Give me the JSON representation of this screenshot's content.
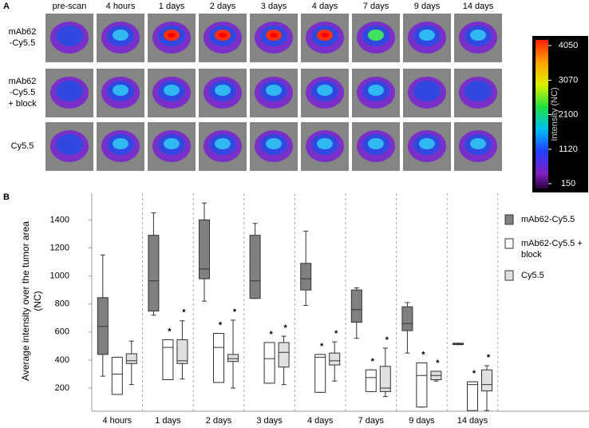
{
  "panel_a": {
    "label": "A",
    "columns": [
      "pre-scan",
      "4 hours",
      "1 days",
      "2 days",
      "3 days",
      "4 days",
      "7 days",
      "9 days",
      "14 days"
    ],
    "rows": [
      [
        "mAb62",
        "-Cy5.5"
      ],
      [
        "mAb62",
        "-Cy5.5",
        "+ block"
      ],
      [
        "Cy5.5"
      ]
    ],
    "colorbar": {
      "label": "Intensity (NC)",
      "lim": [
        150,
        4050
      ],
      "ticks": [
        4050,
        3070,
        2100,
        1120,
        150
      ]
    }
  },
  "chart_data": {
    "type": "box",
    "panel_label": "B",
    "y_label": "Average intensity over the tumor area (NC)",
    "categories": [
      "4 hours",
      "1 days",
      "2 days",
      "3 days",
      "4 days",
      "7 days",
      "9 days",
      "14 days"
    ],
    "ylim": [
      35,
      1590
    ],
    "yticks": [
      200,
      400,
      600,
      800,
      1000,
      1200,
      1400
    ],
    "series": [
      {
        "name": "mAb62-Cy5.5",
        "color": "#808080",
        "values": [
          [
            285,
            440,
            640,
            845,
            1150
          ],
          [
            720,
            750,
            965,
            1290,
            1450
          ],
          [
            820,
            980,
            1050,
            1400,
            1520
          ],
          [
            840,
            840,
            965,
            1290,
            1375
          ],
          [
            790,
            900,
            980,
            1090,
            1320
          ],
          [
            555,
            670,
            760,
            900,
            915
          ],
          [
            450,
            610,
            660,
            780,
            810
          ],
          [
            510,
            510,
            515,
            520,
            520
          ]
        ]
      },
      {
        "name": "mAb62-Cy5.5 + block",
        "color": "#ffffff",
        "values": [
          [
            155,
            155,
            300,
            420,
            420
          ],
          [
            260,
            260,
            490,
            545,
            545
          ],
          [
            240,
            240,
            490,
            590,
            590
          ],
          [
            235,
            235,
            410,
            525,
            525
          ],
          [
            170,
            170,
            420,
            440,
            440
          ],
          [
            175,
            175,
            275,
            330,
            330
          ],
          [
            65,
            65,
            290,
            380,
            380
          ],
          [
            40,
            40,
            225,
            245,
            245
          ]
        ],
        "annotations": [
          null,
          "*",
          "*",
          "*",
          "*",
          "*",
          "*",
          "*"
        ]
      },
      {
        "name": "Cy5.5",
        "color": "#e0e0e0",
        "values": [
          [
            225,
            375,
            395,
            445,
            535
          ],
          [
            265,
            375,
            395,
            545,
            680
          ],
          [
            200,
            390,
            410,
            440,
            685
          ],
          [
            225,
            350,
            455,
            525,
            570
          ],
          [
            250,
            365,
            395,
            450,
            530
          ],
          [
            140,
            175,
            200,
            355,
            485
          ],
          [
            250,
            260,
            290,
            320,
            320
          ],
          [
            40,
            180,
            225,
            330,
            360
          ]
        ],
        "annotations": [
          null,
          "*",
          "*",
          "*",
          "*",
          "*",
          "*",
          "*"
        ]
      }
    ]
  }
}
